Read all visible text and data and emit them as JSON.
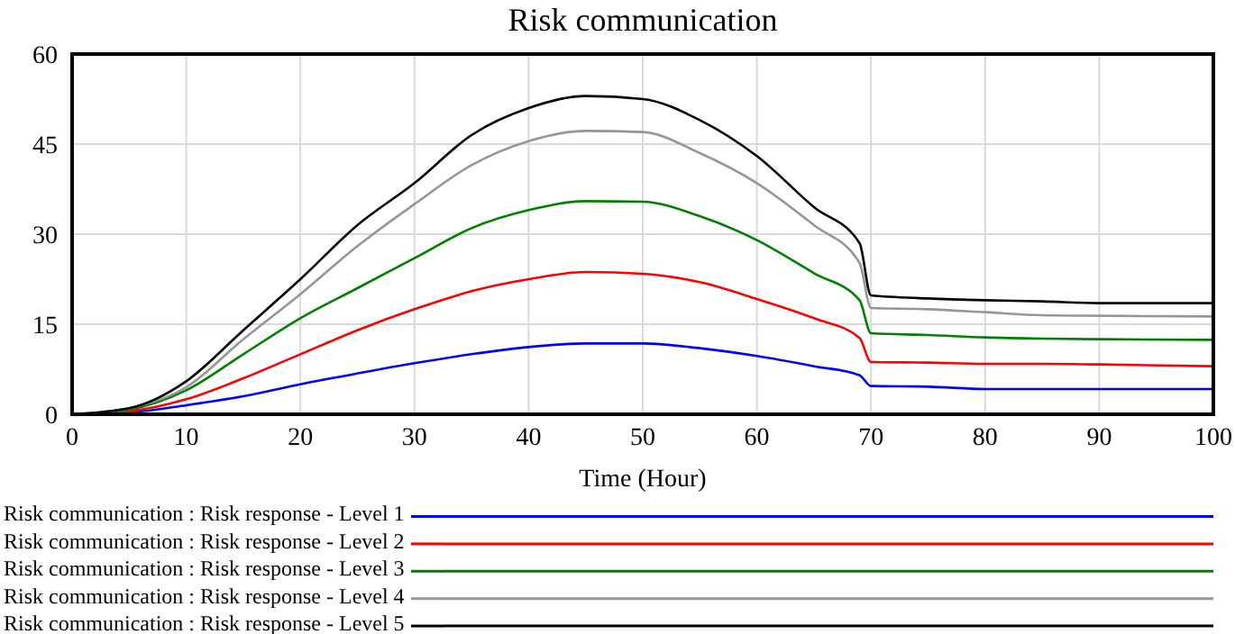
{
  "chart_data": {
    "type": "line",
    "title": "Risk communication",
    "xlabel": "Time (Hour)",
    "x": [
      0,
      5,
      10,
      15,
      20,
      25,
      30,
      35,
      40,
      45,
      50,
      55,
      60,
      65,
      69,
      70,
      75,
      80,
      85,
      90,
      100
    ],
    "xlim": [
      0,
      100
    ],
    "xticks": [
      0,
      10,
      20,
      30,
      40,
      50,
      60,
      70,
      80,
      90,
      100
    ],
    "ylim": [
      0,
      60
    ],
    "yticks": [
      0,
      15,
      30,
      45,
      60
    ],
    "grid": true,
    "legend": "bottom",
    "marker": "none",
    "line_style": "solid",
    "series": [
      {
        "name": "Risk communication : Risk response - Level 1",
        "color": "#0000ff",
        "values": [
          0,
          0.3,
          1.5,
          3,
          5,
          6.8,
          8.5,
          10,
          11.2,
          11.8,
          11.8,
          11,
          9.7,
          8,
          6.5,
          4.7,
          4.6,
          4.2,
          4.2,
          4.2,
          4.2
        ]
      },
      {
        "name": "Risk communication : Risk response - Level 2",
        "color": "#ff0000",
        "values": [
          0,
          0.5,
          2.5,
          6,
          10,
          14,
          17.5,
          20.5,
          22.5,
          23.7,
          23.4,
          22,
          19.2,
          16,
          12.7,
          8.7,
          8.6,
          8.4,
          8.4,
          8.3,
          8
        ]
      },
      {
        "name": "Risk communication : Risk response - Level 3",
        "color": "#008000",
        "values": [
          0,
          0.8,
          4,
          10,
          16,
          21,
          26,
          31,
          34,
          35.5,
          35.4,
          33,
          29,
          23.5,
          19,
          13.5,
          13.2,
          12.8,
          12.6,
          12.5,
          12.4
        ]
      },
      {
        "name": "Risk communication : Risk response - Level 4",
        "color": "#969696",
        "values": [
          0,
          1,
          4.5,
          12.5,
          20,
          28,
          35,
          41.5,
          45.5,
          47.2,
          47,
          43.5,
          38.5,
          31.5,
          25.2,
          17.7,
          17.5,
          17,
          16.5,
          16.4,
          16.3
        ]
      },
      {
        "name": "Risk communication : Risk response - Level 5",
        "color": "#000000",
        "values": [
          0,
          1,
          5.5,
          14,
          22.5,
          31.5,
          38.5,
          46.5,
          51,
          53,
          52.5,
          49,
          43,
          34.5,
          28.5,
          19.8,
          19.3,
          19,
          18.8,
          18.5,
          18.5
        ]
      }
    ]
  }
}
